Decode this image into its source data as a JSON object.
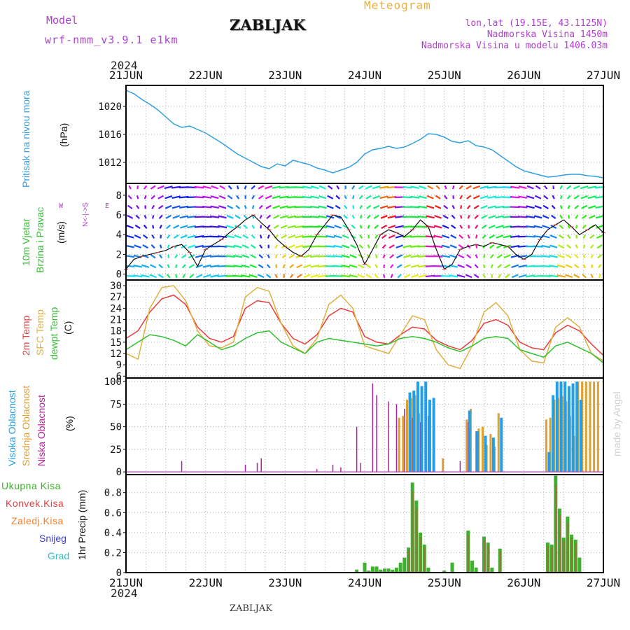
{
  "header": {
    "model_label": "Model",
    "model_name": "wrf-nmm_v3.9.1  e1km",
    "station": "ZABLJAK",
    "product": "Meteogram",
    "lonlat": "lon,lat (19.15E, 43.1125N)",
    "elevation": "Nadmorska Visina 1450m",
    "model_elevation": "Nadmorska Visina u modelu 1406.03m",
    "year_top": "2024",
    "year_bottom": "2024",
    "footer_station": "ZABLJAK",
    "credit": "made by Angel"
  },
  "colors": {
    "pressure": "#30a0e0",
    "temp2m": "#e83c3c",
    "sfc": "#e0b040",
    "dewpt": "#30c030",
    "high_cloud": "#20a0e8",
    "mid_cloud": "#e0a030",
    "low_cloud": "#b020a0",
    "precip_total": "#40b030",
    "precip_conv": "#e84040",
    "precip_frz": "#f08030",
    "snow": "#4040d0",
    "grad": "#30c0c0",
    "labels": "#b040d0"
  },
  "chart_data": {
    "type": "meteogram",
    "x_ticks": [
      "21JUN",
      "22JUN",
      "23JUN",
      "24JUN",
      "25JUN",
      "26JUN",
      "27JUN"
    ],
    "panels": [
      {
        "id": "pressure",
        "type": "line",
        "ylabel": "Pritisak na nivou mora",
        "unit": "(hPa)",
        "yticks": [
          1012,
          1016,
          1020
        ],
        "ylim": [
          1009,
          1023
        ],
        "series": [
          {
            "x": [
              0,
              0.1,
              0.2,
              0.3,
              0.4,
              0.5,
              0.6,
              0.7,
              0.8,
              0.9,
              1.0,
              1.1,
              1.2,
              1.3,
              1.4,
              1.5,
              1.6,
              1.7,
              1.8,
              1.9,
              2.0,
              2.1,
              2.2,
              2.3,
              2.4,
              2.5,
              2.6,
              2.7,
              2.8,
              2.9,
              3.0,
              3.1,
              3.2,
              3.3,
              3.4,
              3.5,
              3.6,
              3.7,
              3.8,
              3.9,
              4.0,
              4.1,
              4.2,
              4.3,
              4.4,
              4.5,
              4.6,
              4.7,
              4.8,
              4.9,
              5.0,
              5.1,
              5.2,
              5.3,
              5.4,
              5.5,
              5.6,
              5.7,
              5.8,
              5.9,
              6.0
            ],
            "values": [
              1022.3,
              1021.8,
              1021.0,
              1020.3,
              1019.5,
              1018.5,
              1017.5,
              1017.0,
              1017.2,
              1016.7,
              1016.2,
              1015.5,
              1014.8,
              1014.0,
              1013.2,
              1012.6,
              1012.0,
              1011.4,
              1011.1,
              1011.8,
              1011.5,
              1012.3,
              1012.0,
              1011.7,
              1011.2,
              1010.9,
              1010.5,
              1010.9,
              1011.3,
              1012.0,
              1013.2,
              1013.8,
              1014.0,
              1014.3,
              1014.0,
              1014.2,
              1014.7,
              1015.3,
              1016.1,
              1016.0,
              1015.6,
              1015.0,
              1014.8,
              1015.1,
              1014.4,
              1014.2,
              1013.8,
              1013.0,
              1012.2,
              1011.4,
              1010.8,
              1010.5,
              1010.2,
              1009.9,
              1010.0,
              1010.2,
              1010.3,
              1010.3,
              1010.1,
              1010.0,
              1009.8
            ]
          }
        ]
      },
      {
        "id": "wind",
        "type": "line",
        "ylabel": "10m Vjetar",
        "ylabel2": "Brzina i Pravac",
        "unit": "(m/s)",
        "compass_w": "W",
        "compass_e": "E",
        "compass_n": "N<-|->S",
        "yticks": [
          0,
          2,
          4,
          6,
          8
        ],
        "ylim": [
          -0.6,
          9.2
        ],
        "series": [
          {
            "x": [
              0,
              0.1,
              0.2,
              0.3,
              0.4,
              0.5,
              0.6,
              0.7,
              0.8,
              0.9,
              1.0,
              1.1,
              1.2,
              1.3,
              1.4,
              1.5,
              1.6,
              1.7,
              1.8,
              1.9,
              2.0,
              2.1,
              2.2,
              2.3,
              2.4,
              2.5,
              2.6,
              2.7,
              2.8,
              2.9,
              3.0,
              3.1,
              3.2,
              3.3,
              3.4,
              3.5,
              3.6,
              3.7,
              3.8,
              3.9,
              4.0,
              4.1,
              4.2,
              4.3,
              4.4,
              4.5,
              4.6,
              4.7,
              4.8,
              4.9,
              5.0,
              5.1,
              5.2,
              5.3,
              5.4,
              5.5,
              5.6,
              5.7,
              5.8,
              5.9,
              6.0
            ],
            "values": [
              0.5,
              1.5,
              1.8,
              2.0,
              2.2,
              2.4,
              2.8,
              3.0,
              2.2,
              0.8,
              2.5,
              3.0,
              3.5,
              4.2,
              4.8,
              5.5,
              6.0,
              5.2,
              4.5,
              3.5,
              2.8,
              2.2,
              1.8,
              2.5,
              4.0,
              5.0,
              6.0,
              5.8,
              4.5,
              3.0,
              1.0,
              2.5,
              4.0,
              4.5,
              4.2,
              3.8,
              4.5,
              5.5,
              4.8,
              2.5,
              0.5,
              1.0,
              2.5,
              2.8,
              3.0,
              2.8,
              3.2,
              3.0,
              2.8,
              2.0,
              1.5,
              2.0,
              3.5,
              4.5,
              5.0,
              5.5,
              4.8,
              4.0,
              4.5,
              5.0,
              4.2
            ]
          }
        ]
      },
      {
        "id": "temperature",
        "type": "line",
        "ylabel": "2m Temp",
        "ylabel2": "SFC Temp",
        "ylabel3": "dewpt Temp",
        "unit": "(C)",
        "yticks": [
          6,
          9,
          12,
          15,
          18,
          21,
          24,
          27,
          30
        ],
        "ylim": [
          5.5,
          31.5
        ],
        "series": [
          {
            "name": "2m Temp",
            "x": [
              0,
              0.15,
              0.3,
              0.45,
              0.6,
              0.75,
              0.9,
              1.05,
              1.2,
              1.35,
              1.5,
              1.65,
              1.8,
              1.95,
              2.1,
              2.25,
              2.4,
              2.55,
              2.7,
              2.85,
              3.0,
              3.15,
              3.3,
              3.45,
              3.6,
              3.75,
              3.9,
              4.05,
              4.2,
              4.35,
              4.5,
              4.65,
              4.8,
              4.95,
              5.1,
              5.25,
              5.4,
              5.55,
              5.7,
              5.85,
              6.0
            ],
            "values": [
              16,
              18,
              23,
              26.5,
              27.5,
              25,
              19,
              16,
              15,
              16.5,
              24,
              26,
              25.5,
              20,
              16,
              14.5,
              17,
              22,
              24,
              23,
              16.5,
              15,
              14.5,
              17,
              19,
              18.5,
              15.5,
              14,
              13,
              15.5,
              20,
              21,
              19.5,
              15,
              13.5,
              13,
              17.5,
              19.5,
              18,
              14.5,
              11.5
            ]
          },
          {
            "name": "SFC Temp",
            "x": [
              0,
              0.15,
              0.3,
              0.45,
              0.6,
              0.75,
              0.9,
              1.05,
              1.2,
              1.35,
              1.5,
              1.65,
              1.8,
              1.95,
              2.1,
              2.25,
              2.4,
              2.55,
              2.7,
              2.85,
              3.0,
              3.15,
              3.3,
              3.45,
              3.6,
              3.75,
              3.9,
              4.05,
              4.2,
              4.35,
              4.5,
              4.65,
              4.8,
              4.95,
              5.1,
              5.25,
              5.4,
              5.55,
              5.7,
              5.85,
              6.0
            ],
            "values": [
              12,
              10.5,
              24,
              29.5,
              30,
              26,
              18,
              14,
              13.5,
              15,
              27,
              29.5,
              28.5,
              20,
              14,
              12,
              16,
              25,
              27.5,
              24,
              14,
              13,
              12,
              17,
              22,
              21,
              13,
              9,
              8,
              14,
              23,
              25.5,
              22,
              13,
              10,
              9.5,
              19,
              21.5,
              19,
              12,
              10
            ]
          },
          {
            "name": "dewpt Temp",
            "x": [
              0,
              0.15,
              0.3,
              0.45,
              0.6,
              0.75,
              0.9,
              1.05,
              1.2,
              1.35,
              1.5,
              1.65,
              1.8,
              1.95,
              2.1,
              2.25,
              2.4,
              2.55,
              2.7,
              2.85,
              3.0,
              3.15,
              3.3,
              3.45,
              3.6,
              3.75,
              3.9,
              4.05,
              4.2,
              4.35,
              4.5,
              4.65,
              4.8,
              4.95,
              5.1,
              5.25,
              5.4,
              5.55,
              5.7,
              5.85,
              6.0
            ],
            "values": [
              13,
              15,
              17,
              16.5,
              15.5,
              14,
              17,
              15,
              13,
              14,
              16,
              17.5,
              18,
              15,
              13.5,
              12,
              15,
              16,
              15.5,
              15,
              14.5,
              14,
              14.5,
              16,
              16.5,
              16,
              15,
              13.5,
              12.5,
              14,
              16,
              16.5,
              16,
              13,
              12,
              11,
              14,
              15,
              13.5,
              12,
              9.5
            ]
          }
        ]
      },
      {
        "id": "clouds",
        "type": "bar",
        "ylabel": "Visoka Oblacnost",
        "ylabel2": "Srednja Oblacnost",
        "ylabel3": "Niska Oblacnost",
        "unit": "(%)",
        "yticks": [
          0,
          25,
          50,
          75,
          100
        ],
        "ylim": [
          -3,
          104
        ],
        "series": [
          {
            "name": "Niska Oblacnost",
            "x": [
              0.7,
              1.5,
              1.65,
              1.7,
              2.4,
              2.6,
              2.7,
              2.9,
              2.95,
              3.1,
              3.15,
              3.3,
              3.4,
              3.5,
              3.6,
              3.7,
              3.8,
              4.2,
              4.3,
              4.4
            ],
            "values": [
              12,
              8,
              10,
              15,
              3,
              8,
              5,
              50,
              10,
              98,
              85,
              78,
              75,
              70,
              60,
              55,
              62,
              12,
              55,
              45
            ]
          },
          {
            "name": "Srednja Oblacnost",
            "x": [
              3.45,
              3.5,
              3.55,
              3.6,
              3.65,
              3.7,
              4.0,
              4.3,
              4.35,
              4.45,
              4.5,
              4.55,
              4.6,
              4.65,
              4.7,
              5.3,
              5.35,
              5.4,
              5.45,
              5.5,
              5.55,
              5.6,
              5.65,
              5.7,
              5.75,
              5.8,
              5.85,
              5.9,
              5.95
            ],
            "values": [
              60,
              62,
              80,
              82,
              85,
              65,
              15,
              58,
              70,
              48,
              50,
              30,
              42,
              28,
              65,
              58,
              60,
              80,
              82,
              84,
              78,
              62,
              40,
              100,
              100,
              100,
              100,
              100,
              100
            ]
          },
          {
            "name": "Visoka Oblacnost",
            "x": [
              3.55,
              3.6,
              3.65,
              3.7,
              3.75,
              3.8,
              3.85,
              4.3,
              4.4,
              4.5,
              4.6,
              4.7,
              5.3,
              5.35,
              5.4,
              5.45,
              5.5,
              5.55,
              5.6,
              5.65,
              5.7
            ],
            "values": [
              88,
              90,
              100,
              95,
              100,
              80,
              82,
              68,
              45,
              40,
              38,
              60,
              22,
              85,
              100,
              100,
              100,
              95,
              98,
              100,
              80
            ]
          }
        ]
      },
      {
        "id": "precip",
        "type": "bar",
        "legend": [
          "Ukupna Kisa",
          "Konvek.Kisa",
          "Zaledj.Kisa",
          "Snijeg",
          "Grad"
        ],
        "ylabel": "1hr Precip (mm)",
        "yticks": [
          0,
          0.2,
          0.4,
          0.6,
          0.8
        ],
        "ylim": [
          0,
          0.98
        ],
        "series": [
          {
            "name": "Ukupna Kisa",
            "x": [
              2.9,
              3.0,
              3.05,
              3.1,
              3.15,
              3.2,
              3.25,
              3.3,
              3.35,
              3.4,
              3.45,
              3.5,
              3.55,
              3.6,
              3.65,
              3.7,
              3.75,
              3.8,
              4.0,
              4.1,
              4.3,
              4.35,
              4.4,
              4.5,
              4.55,
              4.6,
              4.7,
              5.3,
              5.35,
              5.4,
              5.45,
              5.5,
              5.55,
              5.6,
              5.65,
              5.7
            ],
            "values": [
              0.03,
              0.1,
              0.02,
              0.06,
              0.06,
              0.03,
              0.04,
              0.04,
              0.03,
              0.05,
              0.1,
              0.15,
              0.25,
              0.9,
              0.72,
              0.4,
              0.28,
              0.05,
              0.02,
              0.1,
              0.42,
              0.12,
              0.05,
              0.36,
              0.3,
              0.05,
              0.24,
              0.3,
              0.28,
              0.97,
              0.64,
              0.35,
              0.56,
              0.38,
              0.33,
              0.15
            ]
          }
        ]
      }
    ]
  }
}
